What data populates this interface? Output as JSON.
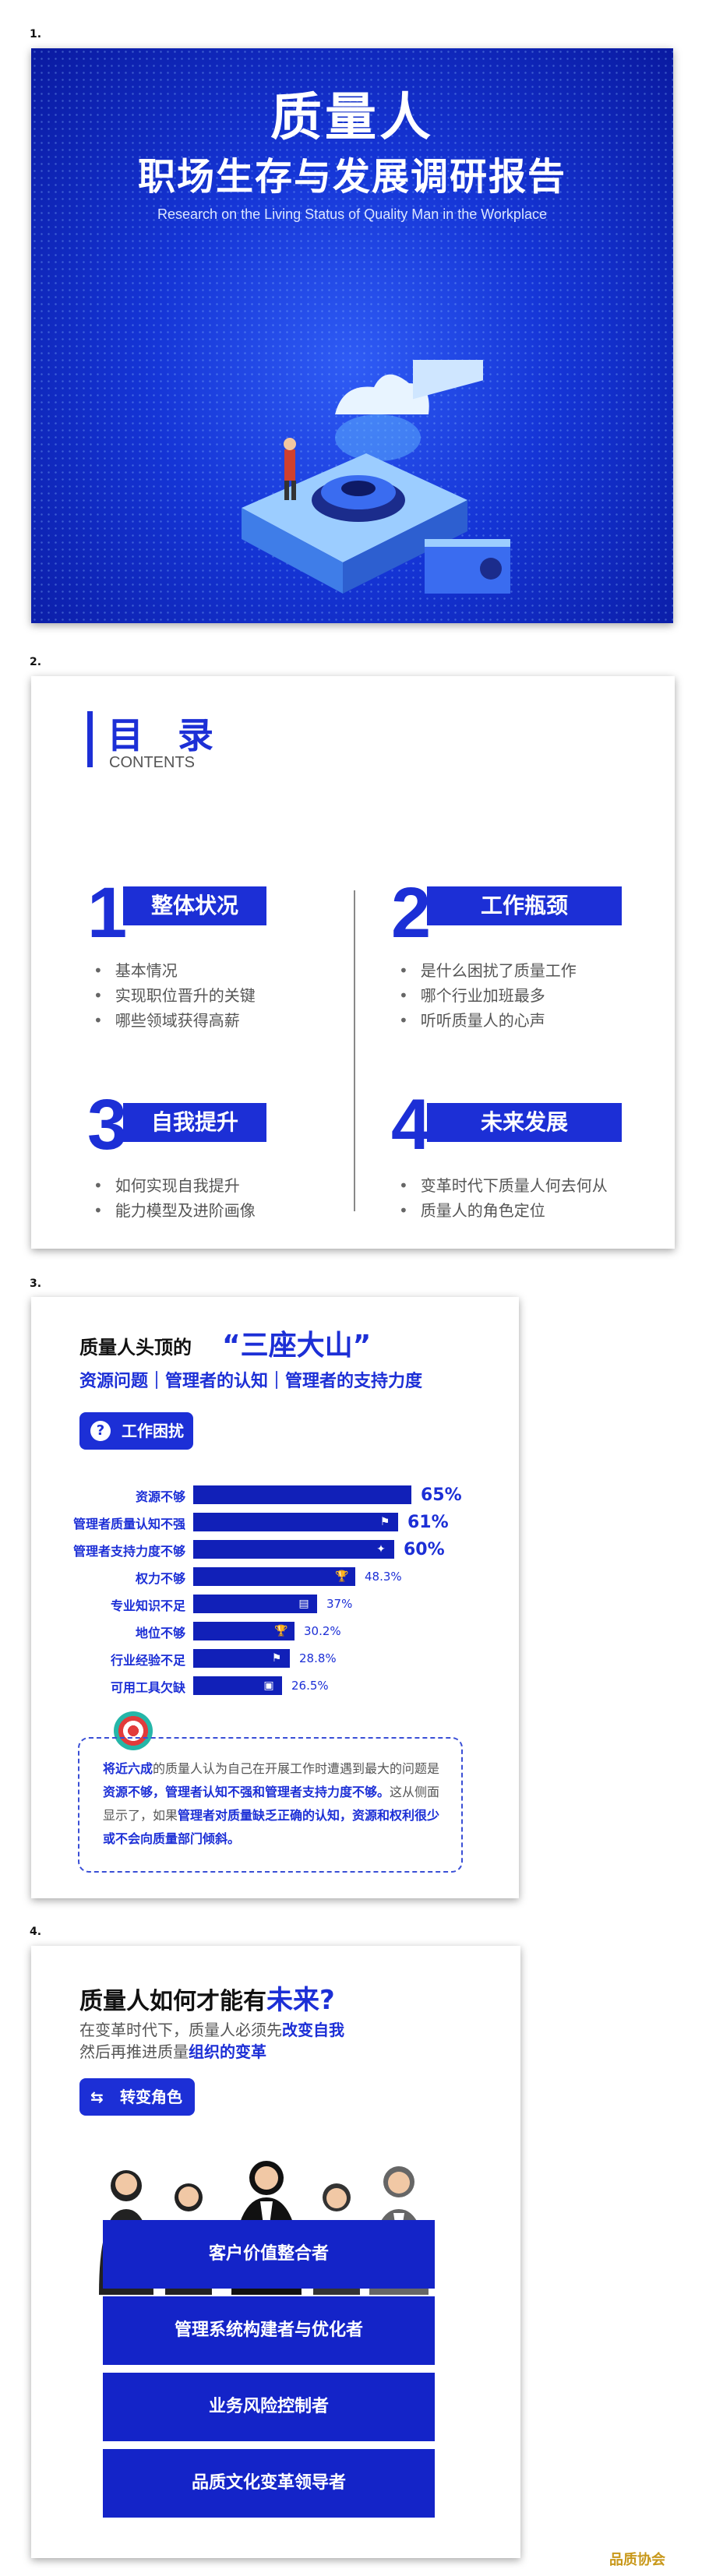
{
  "slide_numbers": [
    "1.",
    "2.",
    "3.",
    "4."
  ],
  "slide1": {
    "title": "质量人",
    "subtitle": "职场生存与发展调研报告",
    "english": "Research on the Living Status of Quality Man in the Workplace"
  },
  "slide2": {
    "title": "目 录",
    "subtitle": "CONTENTS",
    "sections": [
      {
        "number": "1",
        "title": "整体状况",
        "items": [
          "基本情况",
          "实现职位晋升的关键",
          "哪些领域获得高薪"
        ]
      },
      {
        "number": "2",
        "title": "工作瓶颈",
        "items": [
          "是什么困扰了质量工作",
          "哪个行业加班最多",
          "听听质量人的心声"
        ]
      },
      {
        "number": "3",
        "title": "自我提升",
        "items": [
          "如何实现自我提升",
          "能力模型及进阶画像"
        ]
      },
      {
        "number": "4",
        "title": "未来发展",
        "items": [
          "变革时代下质量人何去何从",
          "质量人的角色定位"
        ]
      }
    ]
  },
  "slide3": {
    "heading_prefix": "质量人头顶的",
    "heading_highlight": "“三座大山”",
    "subheading": "资源问题｜管理者的认知｜管理者的支持力度",
    "tag": "工作困扰",
    "tag_icon": "question-icon",
    "chart_data": {
      "type": "bar",
      "categories": [
        "资源不够",
        "管理者质量认知不强",
        "管理者支持力度不够",
        "权力不够",
        "专业知识不足",
        "地位不够",
        "行业经验不足",
        "可用工具欠缺"
      ],
      "values": [
        65,
        61,
        60,
        48.3,
        37,
        30.2,
        28.8,
        26.5
      ],
      "labels": [
        "65%",
        "61%",
        "60%",
        "48.3%",
        "37%",
        "30.2%",
        "28.8%",
        "26.5%"
      ],
      "orientation": "horizontal",
      "bar_color": "#1120b8"
    },
    "note": {
      "t1": "将近六成",
      "t2": "的质量人认为自己在开展工作时遭遇到最大的问题是",
      "t3": "资源不够，管理者认知不强和管理者支持力度不够。",
      "t4": "这从侧面显示了，如果",
      "t5": "管理者对质量缺乏正确的认知，资源和权利很少或不会向质量部门倾斜。"
    }
  },
  "slide4": {
    "heading_prefix": "质量人如何才能有",
    "heading_highlight": "未来?",
    "para_line1_prefix": "在变革时代下，质量人必须先",
    "para_line1_bold": "改变自我",
    "para_line2_prefix": "然后再推进质量",
    "para_line2_bold": "组织的变革",
    "tag": "转变角色",
    "roles": [
      "客户价值整合者",
      "管理系统构建者与优化者",
      "业务风险控制者",
      "品质文化变革领导者"
    ]
  },
  "footer": {
    "logo": "品质协会"
  },
  "colors": {
    "primary": "#1c2fd6",
    "dark_bar": "#1120b8"
  }
}
